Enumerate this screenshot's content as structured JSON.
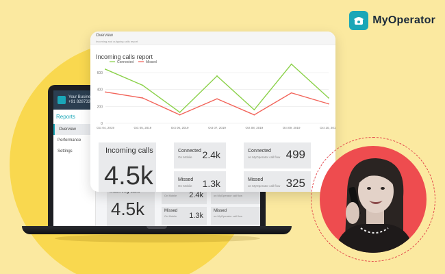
{
  "brand": {
    "name": "MyOperator",
    "color": "#1aa6b7"
  },
  "laptop": {
    "header_line1": "Your Business N",
    "header_line2": "+91 8287333000",
    "sidebar_title": "Reports",
    "sidebar_items": [
      "Overview",
      "Performance",
      "Settings"
    ],
    "stats": [
      {
        "label": "Incoming calls",
        "value": "4.5k"
      },
      {
        "label": "Connected",
        "sub": "On Mobile",
        "value": "2.4k"
      },
      {
        "label": "Missed",
        "sub": "On Mobile",
        "value": "1.3k"
      },
      {
        "label": "Connected",
        "sub": "on MyOperator call flow"
      },
      {
        "label": "Missed",
        "sub": "on MyOperator call flow"
      }
    ]
  },
  "report": {
    "overview_title": "Overview",
    "overview_sub": "Incoming and outgoing calls report",
    "chart_title": "Incoming calls report",
    "stats": {
      "incoming": {
        "label": "Incoming calls",
        "value": "4.5k"
      },
      "connected_mobile": {
        "label": "Connected",
        "sub": "On Mobile",
        "value": "2.4k"
      },
      "missed_mobile": {
        "label": "Missed",
        "sub": "On Mobile",
        "value": "1.3k"
      },
      "connected_flow": {
        "label": "Connected",
        "sub": "on MyOperator call flow",
        "value": "499"
      },
      "missed_flow": {
        "label": "Missed",
        "sub": "on MyOperator call flow",
        "value": "325"
      }
    }
  },
  "chart_data": {
    "type": "line",
    "title": "Incoming calls report",
    "x": [
      "Oct 04, 2019",
      "Oct 05, 2019",
      "Oct 06, 2019",
      "Oct 07, 2019",
      "Oct 08, 2019",
      "Oct 09, 2019",
      "Oct 10, 2019"
    ],
    "ylim": [
      0,
      600
    ],
    "yticks": [
      0,
      200,
      400,
      600
    ],
    "grid": true,
    "legend": "top-left",
    "series": [
      {
        "name": "Connected",
        "color": "#8bd14a",
        "values": [
          640,
          450,
          130,
          560,
          160,
          700,
          300
        ]
      },
      {
        "name": "Missed",
        "color": "#f2645a",
        "values": [
          370,
          300,
          100,
          290,
          100,
          360,
          230
        ]
      }
    ]
  },
  "colors": {
    "background": "#fbe9a0",
    "circle": "#f9d84f",
    "avatar_bg": "#ee4c4f"
  }
}
